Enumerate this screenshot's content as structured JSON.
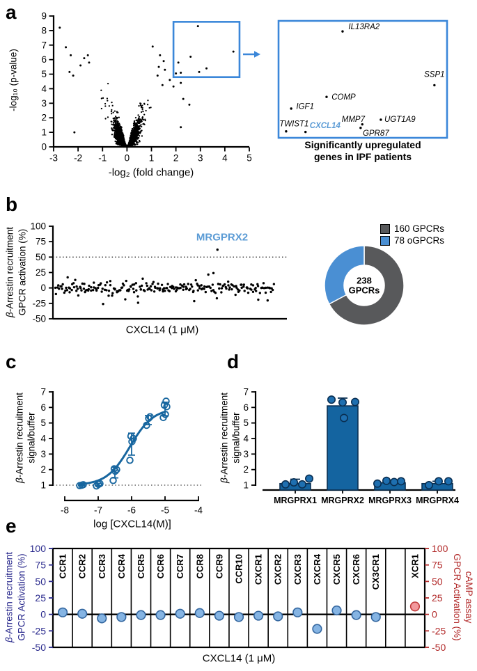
{
  "panel_letters": {
    "a": "a",
    "b": "b",
    "c": "c",
    "d": "d",
    "e": "e"
  },
  "colors": {
    "accent_blue": "#3b87d9",
    "light_blue": "#5b9bd5",
    "curve_blue": "#17669f",
    "bar_fill": "#1464a0",
    "bar_stroke": "#0a2f52",
    "point_fill": "#1e6fb0",
    "navy": "#28288c",
    "red": "#b22a2a",
    "dot_blue_fill": "#85b4e3",
    "dot_blue_stroke": "#33669f",
    "dot_red_fill": "#f2989c",
    "dot_red_stroke": "#c03a3a",
    "donut_gray": "#58595b",
    "donut_blue": "#4a8fd3",
    "black": "#000000"
  },
  "chart_data": [
    {
      "panel": "a",
      "type": "scatter",
      "kind": "volcano",
      "xlabel": "-log₂ (fold change)",
      "ylabel": "-log₁₀ (p-value)",
      "xlim": [
        -3,
        5
      ],
      "ylim": [
        0,
        9
      ],
      "xticks": [
        -3,
        -2,
        -1,
        0,
        1,
        2,
        3,
        4,
        5
      ],
      "yticks": [
        0,
        1,
        2,
        3,
        4,
        5,
        6,
        7,
        8,
        9
      ],
      "cloud": {
        "n": 1520,
        "seed": 20240614
      },
      "outlier_points": [
        [
          -2.75,
          8.2
        ],
        [
          -2.5,
          6.85
        ],
        [
          -2.3,
          6.3
        ],
        [
          -2.35,
          5.15
        ],
        [
          -2.2,
          4.9
        ],
        [
          -1.9,
          5.6
        ],
        [
          -1.75,
          6.1
        ],
        [
          -1.6,
          6.3
        ],
        [
          -1.55,
          5.8
        ],
        [
          -2.15,
          1.0
        ],
        [
          1.05,
          6.9
        ],
        [
          1.35,
          6.3
        ],
        [
          1.5,
          5.9
        ],
        [
          1.3,
          5.5
        ],
        [
          1.55,
          5.3
        ],
        [
          1.25,
          4.9
        ],
        [
          1.75,
          4.6
        ],
        [
          2.2,
          4.4
        ],
        [
          1.45,
          4.25
        ],
        [
          1.9,
          4.15
        ],
        [
          2.3,
          3.3
        ],
        [
          2.55,
          2.9
        ],
        [
          2.2,
          1.35
        ]
      ],
      "box_region": {
        "x": [
          1.9,
          4.6
        ],
        "y": [
          4.8,
          8.6
        ]
      },
      "boxed_points": [
        [
          2.9,
          8.3
        ],
        [
          4.35,
          6.55
        ],
        [
          2.6,
          6.2
        ],
        [
          2.1,
          5.8
        ],
        [
          3.25,
          5.4
        ],
        [
          2.95,
          5.15
        ],
        [
          2.2,
          5.1
        ],
        [
          2.0,
          5.05
        ]
      ],
      "inset": {
        "caption": [
          "Significantly upregulated",
          "genes in IPF patients"
        ],
        "genes": [
          {
            "name": "IL13RA2",
            "px": 0.38,
            "py": 0.09,
            "lx": 0.415,
            "ly": 0.055,
            "anchor": "start"
          },
          {
            "name": "SSP1",
            "px": 0.925,
            "py": 0.55,
            "lx": 0.925,
            "ly": 0.46,
            "anchor": "middle"
          },
          {
            "name": "COMP",
            "px": 0.285,
            "py": 0.65,
            "lx": 0.315,
            "ly": 0.655,
            "anchor": "start"
          },
          {
            "name": "IGF1",
            "px": 0.075,
            "py": 0.75,
            "lx": 0.105,
            "ly": 0.735,
            "anchor": "start"
          },
          {
            "name": "TWIST1",
            "px": 0.045,
            "py": 0.945,
            "lx": 0.005,
            "ly": 0.885,
            "anchor": "start"
          },
          {
            "name": "CXCL14",
            "px": 0.16,
            "py": 0.95,
            "lx": 0.185,
            "ly": 0.9,
            "anchor": "start",
            "highlight": true
          },
          {
            "name": "MMP7",
            "px": 0.497,
            "py": 0.885,
            "lx": 0.375,
            "ly": 0.845,
            "anchor": "start"
          },
          {
            "name": "GPR87",
            "px": 0.487,
            "py": 0.915,
            "lx": 0.5,
            "ly": 0.965,
            "anchor": "start"
          },
          {
            "name": "UGT1A9",
            "px": 0.607,
            "py": 0.845,
            "lx": 0.628,
            "ly": 0.845,
            "anchor": "start"
          }
        ]
      }
    },
    {
      "panel": "b",
      "type": "scatter",
      "xlabel": "CXCL14 (1 μM)",
      "ylabel_lines": [
        "β-Arrestin recruitment",
        "GPCR activation (%)"
      ],
      "ylim": [
        -50,
        100
      ],
      "yticks": [
        -50,
        -25,
        0,
        25,
        50,
        75,
        100
      ],
      "threshold_line": 50,
      "annotation": "MRGPRX2",
      "annotation_value": 62,
      "cloud": {
        "n": 238,
        "seed": 99
      },
      "outliers": [
        {
          "i": 52,
          "v": -26
        },
        {
          "i": 172,
          "v": 24
        },
        {
          "i": 176,
          "v": 62
        },
        {
          "i": 221,
          "v": -19
        }
      ]
    },
    {
      "panel": "b-donut",
      "type": "pie",
      "values": [
        160,
        78
      ],
      "labels": [
        "160 GPCRs",
        "78 oGPCRs"
      ],
      "colors": [
        "#58595b",
        "#4a8fd3"
      ],
      "center_label": [
        "238",
        "GPCRs"
      ]
    },
    {
      "panel": "c",
      "type": "line",
      "xlabel": "log [CXCL14(M)]",
      "ylabel_lines": [
        "β-Arrestin recruitment",
        "signal/buffer"
      ],
      "xlim": [
        -8,
        -4
      ],
      "ylim": [
        1,
        7
      ],
      "xticks": [
        -8,
        -7,
        -6,
        -5,
        -4
      ],
      "yticks": [
        1,
        2,
        3,
        4,
        5,
        6,
        7
      ],
      "baseline": 1,
      "fit": {
        "bottom": 1.0,
        "top": 5.95,
        "logec50": -6.05,
        "hill": 1.25
      },
      "points": [
        {
          "x": -7.5,
          "reps": [
            0.97,
            1.0,
            1.03
          ]
        },
        {
          "x": -7.0,
          "reps": [
            0.95,
            1.05,
            1.1
          ]
        },
        {
          "x": -6.5,
          "reps": [
            1.3,
            1.9,
            2.0,
            2.05
          ]
        },
        {
          "x": -6.0,
          "reps": [
            2.6,
            3.8,
            4.0,
            4.15
          ]
        },
        {
          "x": -5.5,
          "reps": [
            4.85,
            5.3,
            5.4
          ]
        },
        {
          "x": -5.0,
          "reps": [
            5.35,
            5.55,
            6.05,
            6.15,
            6.4
          ]
        }
      ]
    },
    {
      "panel": "d",
      "type": "bar",
      "categories": [
        "MRGPRX1",
        "MRGPRX2",
        "MRGPRX3",
        "MRGPRX4"
      ],
      "values": [
        1.1,
        6.1,
        1.15,
        1.1
      ],
      "errors": [
        0.28,
        0.5,
        0.12,
        0.15
      ],
      "scatter": [
        [
          [
            -14,
            1.05
          ],
          [
            -2,
            1.18
          ],
          [
            10,
            1.05
          ],
          [
            20,
            1.42
          ]
        ],
        [
          [
            -16,
            6.5
          ],
          [
            0,
            6.32
          ],
          [
            18,
            6.35
          ],
          [
            2,
            5.32
          ]
        ],
        [
          [
            -18,
            1.1
          ],
          [
            -5,
            1.28
          ],
          [
            6,
            1.2
          ],
          [
            16,
            1.25
          ]
        ],
        [
          [
            -12,
            1.0
          ],
          [
            2,
            1.25
          ],
          [
            16,
            1.25
          ]
        ]
      ],
      "ylim": [
        1,
        7
      ],
      "yticks": [
        1,
        2,
        3,
        4,
        5,
        6,
        7
      ],
      "ylabel_lines": [
        "β-Arrestin recruitment",
        "signal/buffer"
      ]
    },
    {
      "panel": "e",
      "type": "scatter",
      "xlabel": "CXCL14 (1 μM)",
      "categories": [
        "CCR1",
        "CCR2",
        "CCR3",
        "CCR4",
        "CCR5",
        "CCR6",
        "CCR7",
        "CCR8",
        "CCR9",
        "CCR10",
        "CXCR1",
        "CXCR2",
        "CXCR3",
        "CXCR4",
        "CXCR5",
        "CXCR6",
        "CX3CR1",
        "",
        "XCR1"
      ],
      "left_label_lines": [
        "β-Arrestin recruitment",
        "GPCR Activation (%)"
      ],
      "right_label_lines": [
        "cAMP assay",
        "GPCR Activation (%)"
      ],
      "ylim": [
        -50,
        100
      ],
      "yticks": [
        -50,
        -25,
        0,
        25,
        50,
        75,
        100
      ],
      "series": [
        {
          "name": "β-Arrestin recruitment",
          "axis": "left",
          "values": [
            3,
            1,
            -6,
            -4,
            -1,
            -1,
            1,
            2,
            -2,
            -4,
            -2,
            -3,
            3,
            -22,
            6,
            -1,
            -4,
            null,
            null
          ]
        },
        {
          "name": "cAMP assay",
          "axis": "right",
          "values": [
            null,
            null,
            null,
            null,
            null,
            null,
            null,
            null,
            null,
            null,
            null,
            null,
            null,
            null,
            null,
            null,
            null,
            null,
            12
          ]
        }
      ]
    }
  ]
}
